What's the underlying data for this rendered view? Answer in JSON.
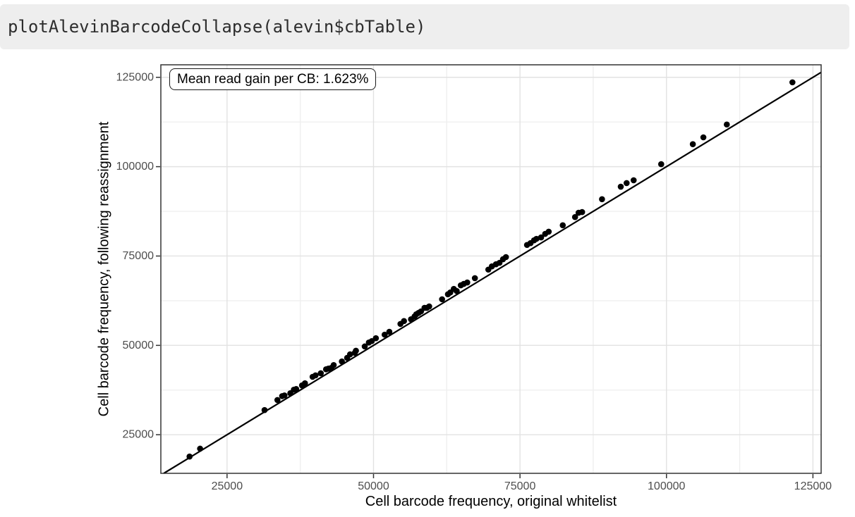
{
  "code_chunk": {
    "text": "plotAlevinBarcodeCollapse(alevin$cbTable)"
  },
  "chart_data": {
    "type": "scatter",
    "title": "",
    "xlabel": "Cell barcode frequency, original whitelist",
    "ylabel": "Cell barcode frequency, following reassignment",
    "annotation": "Mean read gain per CB: 1.623%",
    "xlim": [
      13700,
      126400
    ],
    "ylim": [
      14200,
      128500
    ],
    "xticks": [
      25000,
      50000,
      75000,
      100000,
      125000
    ],
    "yticks": [
      25000,
      50000,
      75000,
      100000,
      125000
    ],
    "xticks_minor": [
      37500,
      62500,
      87500,
      112500
    ],
    "yticks_minor": [
      37500,
      62500,
      87500,
      112500
    ],
    "grid": "major+minor",
    "legend": "none",
    "abline": {
      "slope": 1,
      "intercept": 0
    },
    "theme": {
      "background": "#ffffff",
      "panel_border": "#333333",
      "grid_major": "#e2e2e2",
      "grid_minor": "#efefef",
      "tick_color": "#333333",
      "tick_label_color": "#4d4d4d",
      "point_color": "#000000",
      "line_color": "#000000"
    },
    "points": [
      [
        18600,
        18900
      ],
      [
        20400,
        21100
      ],
      [
        31400,
        31900
      ],
      [
        33600,
        34700
      ],
      [
        34400,
        35800
      ],
      [
        34800,
        36000
      ],
      [
        35800,
        36600
      ],
      [
        36400,
        37600
      ],
      [
        36800,
        37800
      ],
      [
        37800,
        38800
      ],
      [
        38300,
        39400
      ],
      [
        39600,
        41200
      ],
      [
        40100,
        41600
      ],
      [
        41000,
        42200
      ],
      [
        41900,
        43300
      ],
      [
        42300,
        43500
      ],
      [
        42800,
        43700
      ],
      [
        43200,
        44500
      ],
      [
        44600,
        45500
      ],
      [
        45500,
        46500
      ],
      [
        46000,
        47500
      ],
      [
        46800,
        47900
      ],
      [
        47000,
        48500
      ],
      [
        48500,
        49700
      ],
      [
        49200,
        50800
      ],
      [
        49700,
        51200
      ],
      [
        50400,
        52000
      ],
      [
        51900,
        53000
      ],
      [
        52700,
        53800
      ],
      [
        54600,
        56000
      ],
      [
        55200,
        56800
      ],
      [
        56400,
        57300
      ],
      [
        57000,
        58100
      ],
      [
        57300,
        58700
      ],
      [
        57700,
        59100
      ],
      [
        58100,
        59500
      ],
      [
        58700,
        60500
      ],
      [
        59100,
        60500
      ],
      [
        59500,
        60900
      ],
      [
        61700,
        62900
      ],
      [
        62700,
        64300
      ],
      [
        63100,
        64800
      ],
      [
        63700,
        65800
      ],
      [
        64200,
        65200
      ],
      [
        64900,
        66800
      ],
      [
        65400,
        67200
      ],
      [
        66000,
        67600
      ],
      [
        67300,
        68800
      ],
      [
        69600,
        71200
      ],
      [
        70200,
        72100
      ],
      [
        70900,
        72700
      ],
      [
        71500,
        73100
      ],
      [
        72100,
        74100
      ],
      [
        72600,
        74700
      ],
      [
        76200,
        78100
      ],
      [
        76800,
        78600
      ],
      [
        77400,
        79400
      ],
      [
        77800,
        79800
      ],
      [
        78600,
        80200
      ],
      [
        79300,
        81200
      ],
      [
        79900,
        81800
      ],
      [
        82300,
        83600
      ],
      [
        84400,
        85900
      ],
      [
        85000,
        87100
      ],
      [
        85600,
        87300
      ],
      [
        89000,
        90900
      ],
      [
        92200,
        94400
      ],
      [
        93200,
        95400
      ],
      [
        94400,
        96200
      ],
      [
        99100,
        100700
      ],
      [
        104500,
        106300
      ],
      [
        106300,
        108200
      ],
      [
        110300,
        111800
      ],
      [
        121500,
        123600
      ]
    ]
  }
}
